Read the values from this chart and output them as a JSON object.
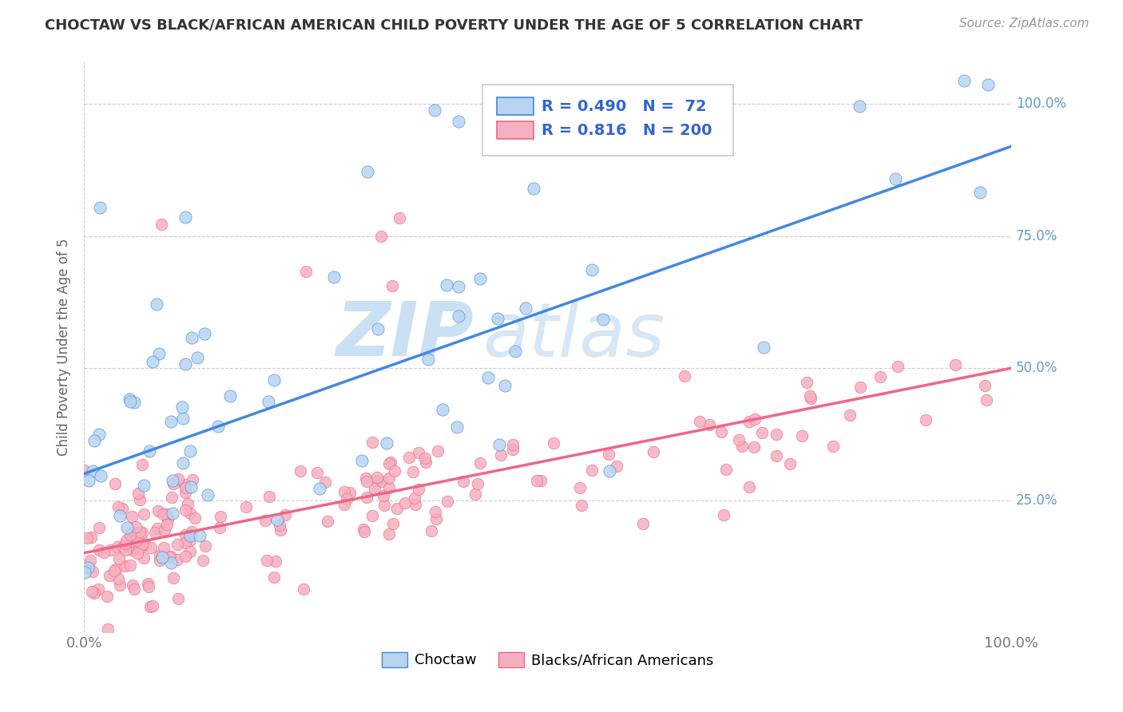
{
  "title": "CHOCTAW VS BLACK/AFRICAN AMERICAN CHILD POVERTY UNDER THE AGE OF 5 CORRELATION CHART",
  "source": "Source: ZipAtlas.com",
  "ylabel": "Child Poverty Under the Age of 5",
  "choctaw_R": 0.49,
  "choctaw_N": 72,
  "black_R": 0.816,
  "black_N": 200,
  "choctaw_color": "#b8d4f0",
  "black_color": "#f5b0c0",
  "choctaw_line_color": "#4488dd",
  "black_line_color": "#ee6688",
  "legend_label_choctaw": "Choctaw",
  "legend_label_black": "Blacks/African Americans",
  "watermark_zip": "ZIP",
  "watermark_atlas": "atlas",
  "background_color": "#ffffff",
  "grid_color": "#cccccc",
  "title_color": "#333333",
  "source_color": "#999999",
  "stat_color": "#3366cc",
  "tick_color": "#6699cc",
  "choctaw_line_intercept": 0.3,
  "choctaw_line_slope": 0.62,
  "black_line_intercept": 0.15,
  "black_line_slope": 0.35,
  "choctaw_seed": 42,
  "black_seed": 7
}
